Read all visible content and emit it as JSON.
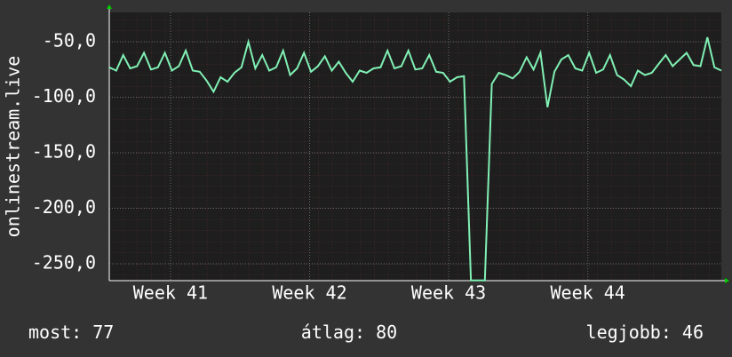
{
  "chart_data": {
    "type": "line",
    "y_label": "onlinestream.live",
    "color": "#80f0b4",
    "grid": true,
    "xlim": [
      40.56,
      44.96
    ],
    "xticks": [
      {
        "value": 41,
        "label": "Week 41"
      },
      {
        "value": 42,
        "label": "Week 42"
      },
      {
        "value": 43,
        "label": "Week 43"
      },
      {
        "value": 44,
        "label": "Week 44"
      }
    ],
    "ylim": [
      -265.2,
      -23.6
    ],
    "yticks": [
      {
        "value": -50,
        "label": "-50,0"
      },
      {
        "value": -100,
        "label": "-100,0"
      },
      {
        "value": -150,
        "label": "-150,0"
      },
      {
        "value": -200,
        "label": "-200,0"
      },
      {
        "value": -250,
        "label": "-250,0"
      }
    ],
    "x": [
      40.56,
      40.61,
      40.66,
      40.71,
      40.76,
      40.81,
      40.86,
      40.91,
      40.96,
      41.01,
      41.06,
      41.11,
      41.16,
      41.21,
      41.26,
      41.31,
      41.36,
      41.41,
      41.46,
      41.51,
      41.56,
      41.61,
      41.66,
      41.71,
      41.76,
      41.81,
      41.86,
      41.91,
      41.96,
      42.01,
      42.06,
      42.11,
      42.16,
      42.21,
      42.26,
      42.31,
      42.36,
      42.41,
      42.46,
      42.51,
      42.56,
      42.61,
      42.66,
      42.71,
      42.76,
      42.81,
      42.86,
      42.91,
      42.96,
      43.01,
      43.06,
      43.11,
      43.16,
      43.21,
      43.26,
      43.31,
      43.36,
      43.41,
      43.46,
      43.51,
      43.56,
      43.61,
      43.66,
      43.71,
      43.76,
      43.81,
      43.86,
      43.91,
      43.96,
      44.01,
      44.06,
      44.11,
      44.16,
      44.21,
      44.26,
      44.31,
      44.36,
      44.41,
      44.46,
      44.51,
      44.56,
      44.61,
      44.66,
      44.71,
      44.76,
      44.81,
      44.86,
      44.91,
      44.96
    ],
    "values": [
      -73,
      -76,
      -62,
      -74,
      -72,
      -60,
      -75,
      -73,
      -60,
      -76,
      -72,
      -58,
      -76,
      -77,
      -85,
      -95,
      -82,
      -86,
      -78,
      -73,
      -50,
      -74,
      -62,
      -76,
      -73,
      -58,
      -80,
      -74,
      -60,
      -77,
      -72,
      -63,
      -76,
      -68,
      -78,
      -86,
      -76,
      -78,
      -74,
      -73,
      -58,
      -74,
      -72,
      -58,
      -75,
      -74,
      -62,
      -77,
      -78,
      -86,
      -82,
      -81,
      -265,
      -265,
      -265,
      -88,
      -78,
      -80,
      -83,
      -77,
      -64,
      -75,
      -60,
      -109,
      -77,
      -66,
      -62,
      -74,
      -76,
      -60,
      -78,
      -75,
      -62,
      -80,
      -84,
      -90,
      -76,
      -80,
      -78,
      -70,
      -62,
      -72,
      -66,
      -60,
      -71,
      -72,
      -46,
      -73,
      -76
    ],
    "stats": [
      {
        "label": "most:",
        "value": 77
      },
      {
        "label": "átlag:",
        "value": 80
      },
      {
        "label": "legjobb:",
        "value": 46
      }
    ]
  }
}
